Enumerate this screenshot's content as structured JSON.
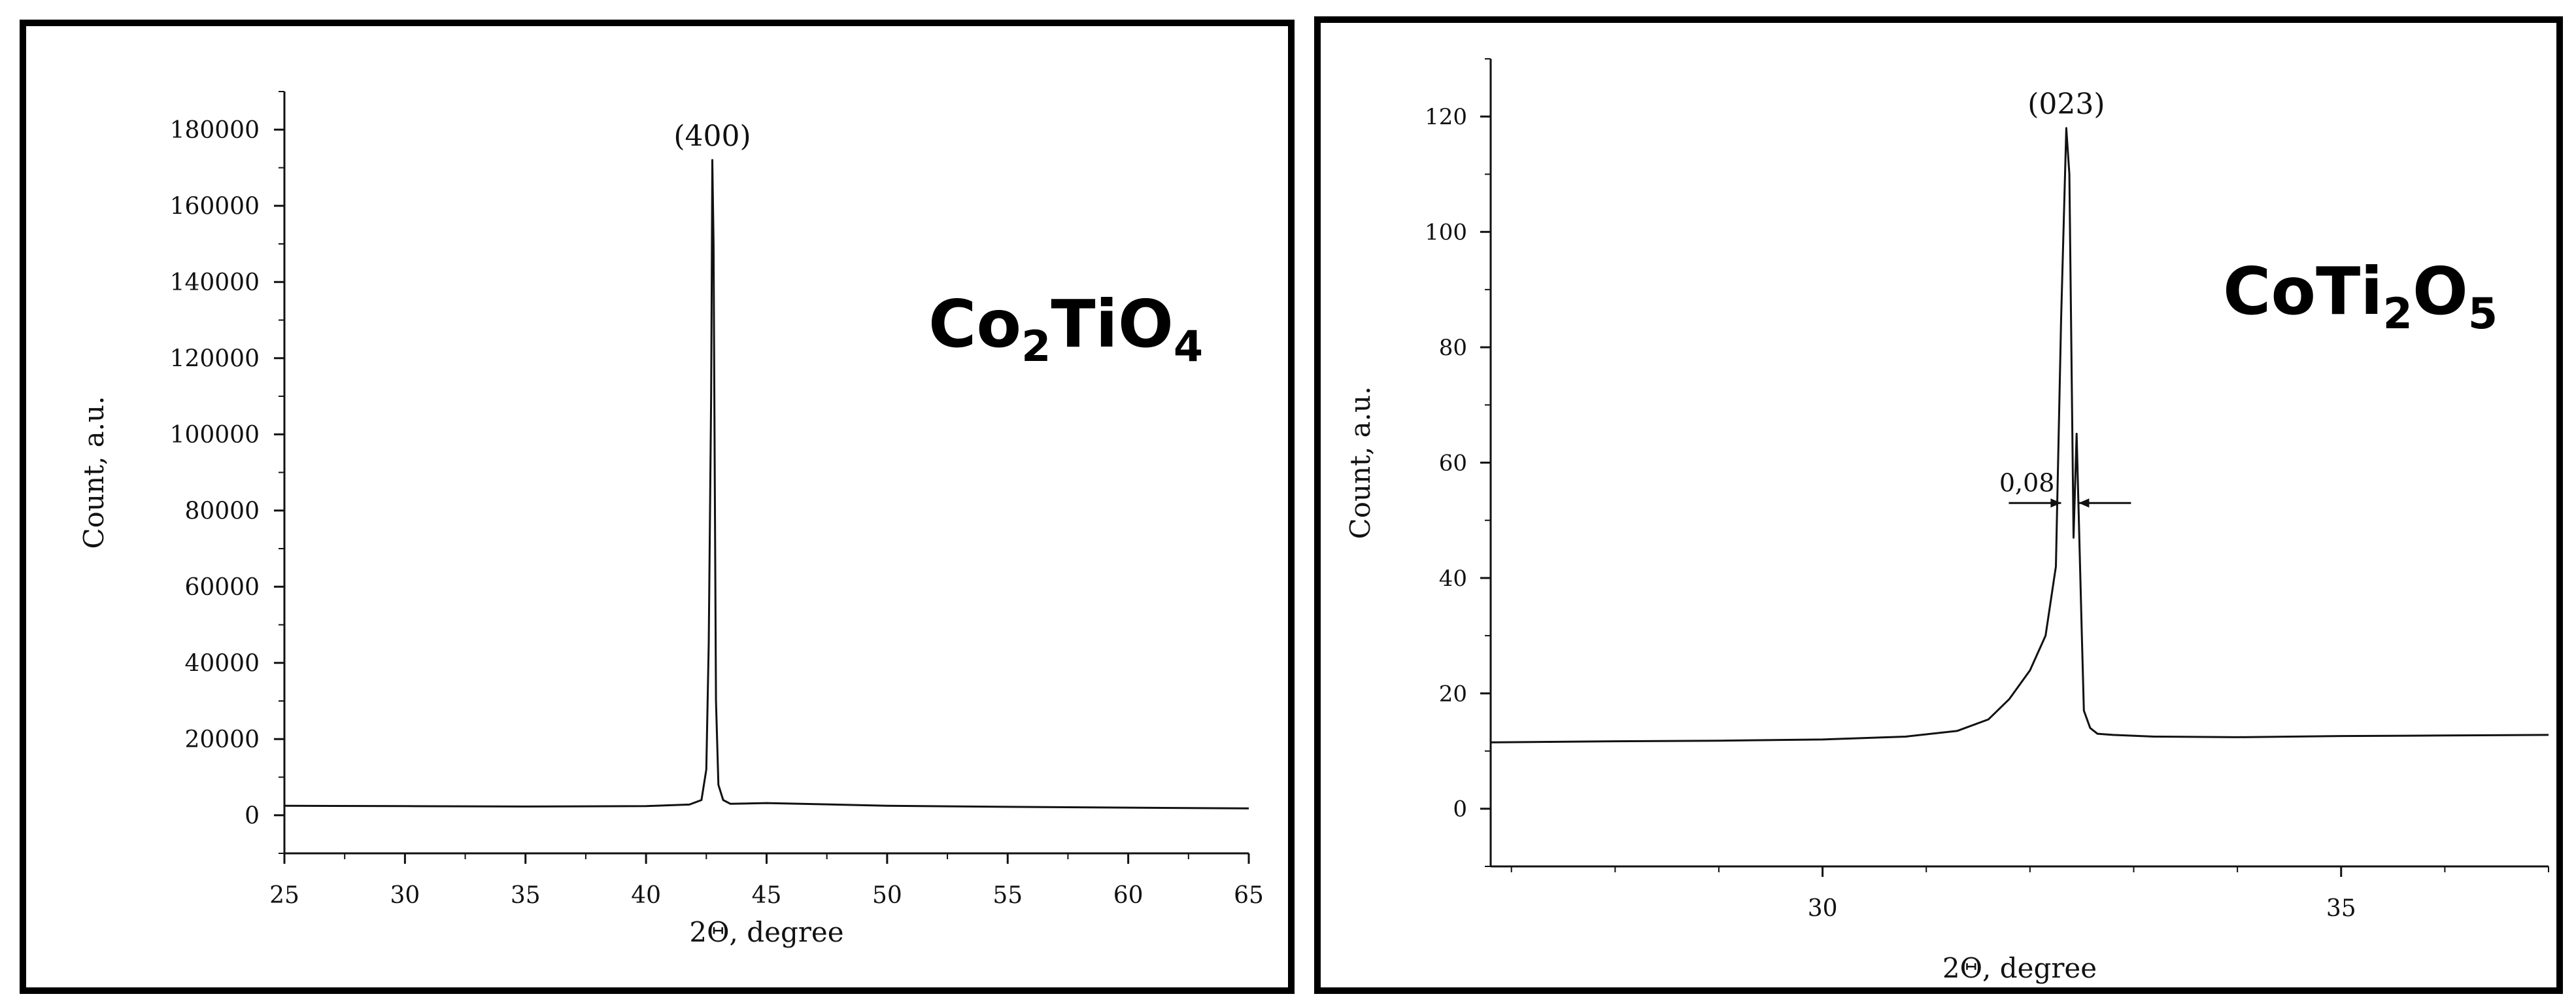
{
  "chart_data": [
    {
      "type": "line",
      "compound": {
        "main": "Co",
        "sub1": "2",
        "mid": "TiO",
        "sub2": "4"
      },
      "peak_label": "(400)",
      "xlabel": "2Θ, degree",
      "ylabel": "Count, a.u.",
      "xlim": [
        25,
        65
      ],
      "ylim": [
        -10000,
        190000
      ],
      "xticks": [
        25,
        30,
        35,
        40,
        45,
        50,
        55,
        60,
        65
      ],
      "yticks": [
        0,
        20000,
        40000,
        60000,
        80000,
        100000,
        120000,
        140000,
        160000,
        180000
      ],
      "x": [
        25,
        30,
        35,
        40,
        41.8,
        42.3,
        42.5,
        42.6,
        42.7,
        42.75,
        42.8,
        42.85,
        42.9,
        43.0,
        43.2,
        43.5,
        45,
        50,
        55,
        60,
        65
      ],
      "y": [
        2500,
        2400,
        2300,
        2400,
        2800,
        4000,
        12000,
        45000,
        110000,
        172000,
        150000,
        90000,
        30000,
        8000,
        4000,
        3000,
        3200,
        2500,
        2200,
        2000,
        1800
      ]
    },
    {
      "type": "line",
      "compound": {
        "main": "CoTi",
        "sub1": "2",
        "mid": "O",
        "sub2": "5"
      },
      "peak_label": "(023)",
      "fwhm_label": "0,08",
      "xlabel": "2Θ, degree",
      "ylabel": "Count, a.u.",
      "xlim": [
        26.8,
        37.0
      ],
      "ylim": [
        -10,
        130
      ],
      "xticks": [
        30,
        35
      ],
      "yticks": [
        0,
        20,
        40,
        60,
        80,
        100,
        120
      ],
      "x": [
        26.8,
        28,
        29,
        30,
        30.8,
        31.3,
        31.6,
        31.8,
        32.0,
        32.15,
        32.25,
        32.3,
        32.35,
        32.38,
        32.42,
        32.45,
        32.5,
        32.52,
        32.58,
        32.65,
        32.8,
        33.2,
        34,
        35,
        36,
        37
      ],
      "y": [
        11.5,
        11.7,
        11.8,
        12.0,
        12.5,
        13.5,
        15.5,
        19,
        24,
        30,
        42,
        85,
        118,
        110,
        47,
        65,
        30,
        17,
        14,
        13,
        12.8,
        12.5,
        12.4,
        12.6,
        12.7,
        12.8
      ]
    }
  ]
}
